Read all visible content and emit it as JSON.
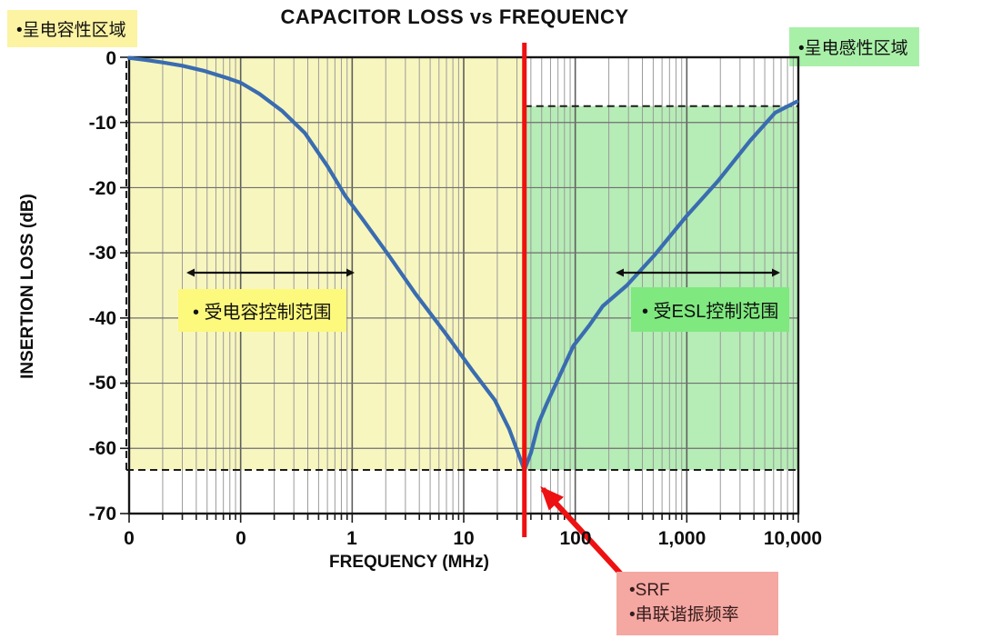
{
  "chart_data": {
    "type": "line",
    "title": "CAPACITOR LOSS vs FREQUENCY",
    "xlabel": "FREQUENCY (MHz)",
    "ylabel": "INSERTION LOSS (dB)",
    "x_scale": "log",
    "x_range_mhz": [
      0.01,
      10000
    ],
    "ylim": [
      -70,
      0
    ],
    "grid": "log-log major/minor, horizontal every 10 dB",
    "x_tick_labels": [
      "0",
      "0",
      "1",
      "10",
      "100",
      "1,000",
      "10,000"
    ],
    "y_tick_labels": [
      "0",
      "-10",
      "-20",
      "-30",
      "-40",
      "-50",
      "-60",
      "-70"
    ],
    "srf_mhz": 35,
    "min_loss_db": -63.3,
    "series": [
      {
        "name": "Capacitor insertion loss",
        "points_mhz_db": [
          [
            0.01,
            -0.1
          ],
          [
            0.014,
            -0.4
          ],
          [
            0.02,
            -0.8
          ],
          [
            0.03,
            -1.3
          ],
          [
            0.0475,
            -2.1
          ],
          [
            0.076,
            -3.2
          ],
          [
            0.1,
            -3.9
          ],
          [
            0.147,
            -5.6
          ],
          [
            0.234,
            -8.2
          ],
          [
            0.376,
            -11.6
          ],
          [
            0.6,
            -16.7
          ],
          [
            0.87,
            -21.3
          ],
          [
            1.27,
            -25.1
          ],
          [
            2.11,
            -30.3
          ],
          [
            3.7,
            -36.3
          ],
          [
            6.9,
            -42.4
          ],
          [
            12,
            -48.1
          ],
          [
            19,
            -52.6
          ],
          [
            25.5,
            -57.0
          ],
          [
            30.7,
            -60.7
          ],
          [
            35,
            -63.3
          ],
          [
            40,
            -60.7
          ],
          [
            47,
            -56.1
          ],
          [
            56,
            -53.0
          ],
          [
            71,
            -49.2
          ],
          [
            96,
            -44.3
          ],
          [
            134,
            -41.1
          ],
          [
            176,
            -38.2
          ],
          [
            290,
            -35.0
          ],
          [
            511,
            -30.4
          ],
          [
            990,
            -24.4
          ],
          [
            1900,
            -19.0
          ],
          [
            3700,
            -12.8
          ],
          [
            6200,
            -8.5
          ],
          [
            9700,
            -6.8
          ]
        ]
      }
    ],
    "regions": [
      {
        "name": "capacitive",
        "x_mhz": [
          0.01,
          35
        ],
        "y_db": [
          0,
          -63.3
        ]
      },
      {
        "name": "inductive",
        "x_mhz": [
          35,
          10000
        ],
        "y_db": [
          -7.5,
          -63.3
        ]
      }
    ]
  },
  "annotations": {
    "capacitive_region_label": "•呈电容性区域",
    "inductive_region_label": "•呈电感性区域",
    "capacitance_controlled_label": "• 受电容控制范围",
    "esl_controlled_label": "• 受ESL控制范围",
    "srf_label_line1": "•SRF",
    "srf_label_line2": "•串联谐振频率"
  },
  "colors": {
    "curve_blue": "#3a6cb0",
    "srf_red": "#ee1111",
    "region_yellow": "#f8f6bf",
    "region_green": "#b6ecb6",
    "label_yellow_outside": "#fcf3a3",
    "label_yellow_inside": "#fcf97c",
    "label_green_outside": "#a8f0a8",
    "label_green_inside": "#7fe87f",
    "srf_box_pink": "#f5a7a1"
  }
}
